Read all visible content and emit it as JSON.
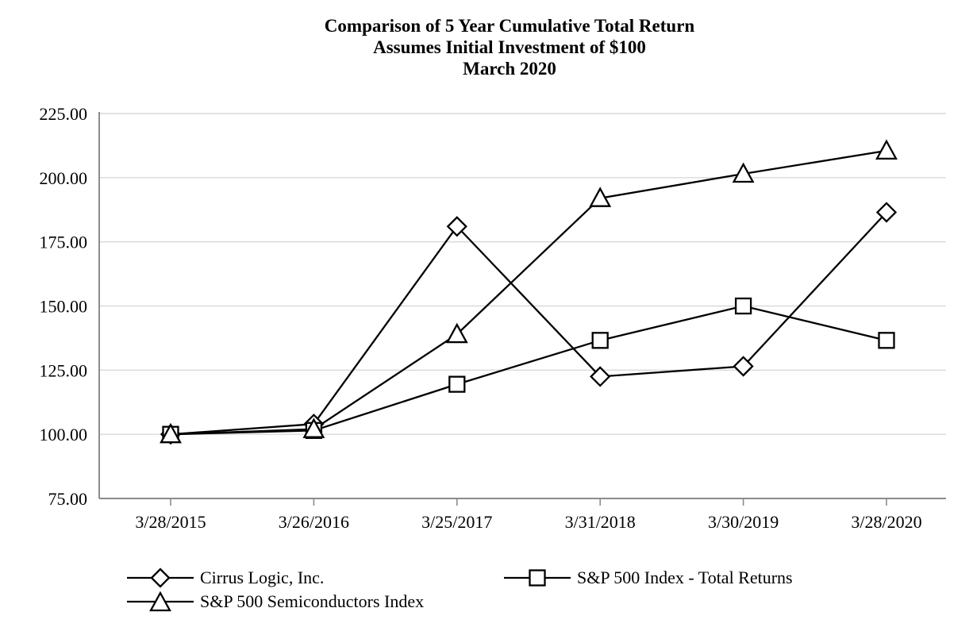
{
  "chart_data": {
    "type": "line",
    "title_lines": [
      "Comparison of 5 Year Cumulative Total Return",
      "Assumes Initial Investment of $100",
      "March 2020"
    ],
    "x_categories": [
      "3/28/2015",
      "3/26/2016",
      "3/25/2017",
      "3/31/2018",
      "3/30/2019",
      "3/28/2020"
    ],
    "y_ticks": [
      "225.00",
      "200.00",
      "175.00",
      "150.00",
      "125.00",
      "100.00",
      "75.00"
    ],
    "ylim": [
      75,
      225
    ],
    "grid": "horizontal",
    "legend_position": "bottom",
    "series": [
      {
        "name": "Cirrus Logic, Inc.",
        "marker": "diamond",
        "values": [
          100.0,
          104.0,
          181.0,
          122.5,
          126.5,
          186.5
        ]
      },
      {
        "name": "S&P 500 Index - Total Returns",
        "marker": "square",
        "values": [
          100.0,
          101.5,
          119.5,
          136.6,
          150.0,
          136.6
        ]
      },
      {
        "name": "S&P 500 Semiconductors Index",
        "marker": "triangle",
        "values": [
          100.0,
          102.0,
          139.0,
          192.0,
          201.5,
          210.5
        ]
      }
    ],
    "colors": {
      "line": "#000000",
      "marker_fill": "#ffffff",
      "grid": "#d9d9d9",
      "axis": "#8c8c8c",
      "text": "#000000",
      "background": "#ffffff"
    }
  }
}
